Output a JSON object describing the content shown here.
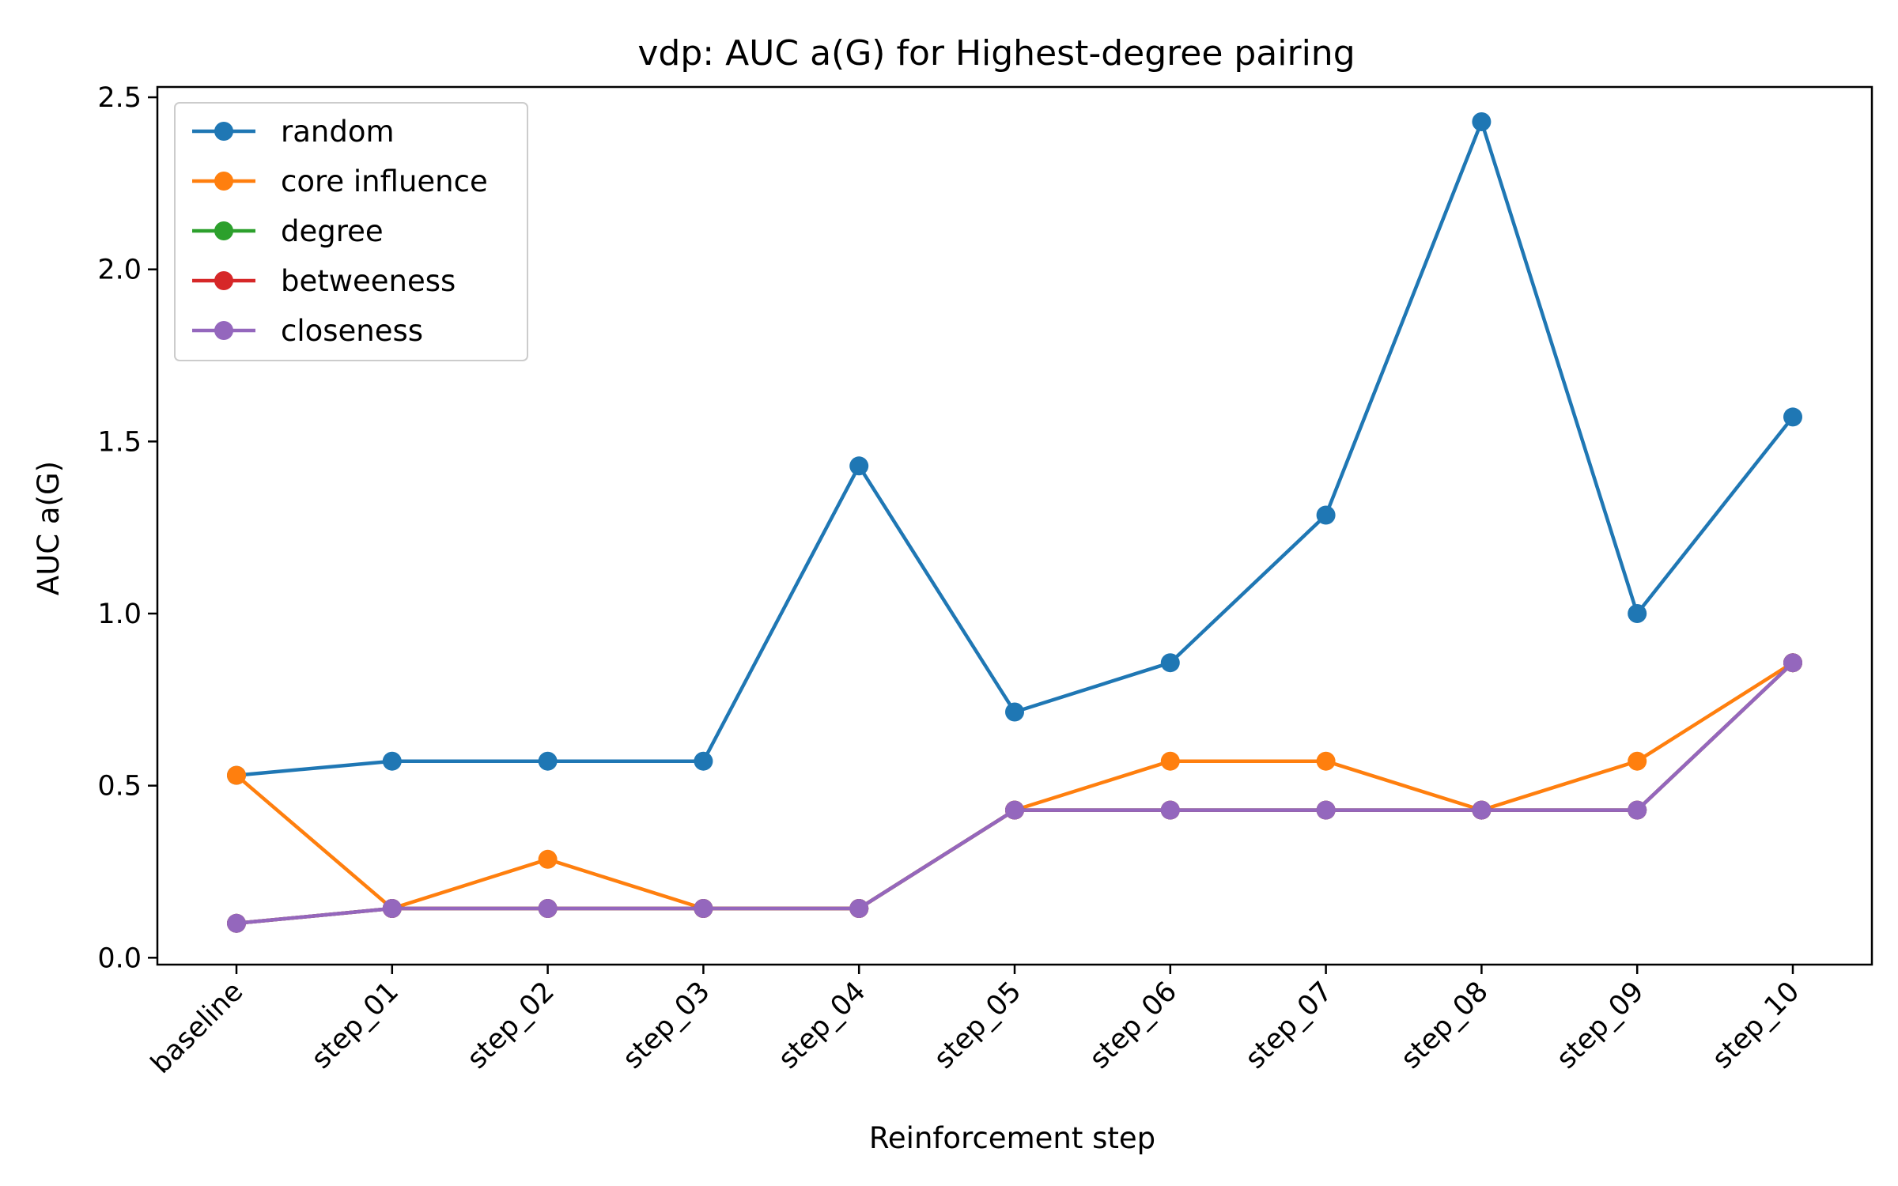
{
  "chart_data": {
    "type": "line",
    "title": "vdp: AUC a(G) for Highest-degree pairing",
    "xlabel": "Reinforcement step",
    "ylabel": "AUC a(G)",
    "categories": [
      "baseline",
      "step_01",
      "step_02",
      "step_03",
      "step_04",
      "step_05",
      "step_06",
      "step_07",
      "step_08",
      "step_09",
      "step_10"
    ],
    "ylim": [
      -0.02,
      2.53
    ],
    "yticks": [
      0.0,
      0.5,
      1.0,
      1.5,
      2.0,
      2.5
    ],
    "ytick_labels": [
      "0.0",
      "0.5",
      "1.0",
      "1.5",
      "2.0",
      "2.5"
    ],
    "grid": false,
    "legend_position": "top-left",
    "series": [
      {
        "name": "random",
        "color": "#1f77b4",
        "values": [
          0.53,
          0.571,
          0.571,
          0.571,
          1.429,
          0.714,
          0.857,
          1.286,
          2.429,
          1.0,
          1.571
        ]
      },
      {
        "name": "core influence",
        "color": "#ff7f0e",
        "values": [
          0.53,
          0.143,
          0.286,
          0.143,
          0.143,
          0.429,
          0.571,
          0.571,
          0.429,
          0.571,
          0.857
        ]
      },
      {
        "name": "degree",
        "color": "#2ca02c",
        "values": [
          0.1,
          0.143,
          0.143,
          0.143,
          0.143,
          0.429,
          0.429,
          0.429,
          0.429,
          0.429,
          0.857
        ]
      },
      {
        "name": "betweeness",
        "color": "#d62728",
        "values": [
          0.1,
          0.143,
          0.143,
          0.143,
          0.143,
          0.429,
          0.429,
          0.429,
          0.429,
          0.429,
          0.857
        ]
      },
      {
        "name": "closeness",
        "color": "#9467bd",
        "values": [
          0.1,
          0.143,
          0.143,
          0.143,
          0.143,
          0.429,
          0.429,
          0.429,
          0.429,
          0.429,
          0.857
        ]
      }
    ]
  }
}
